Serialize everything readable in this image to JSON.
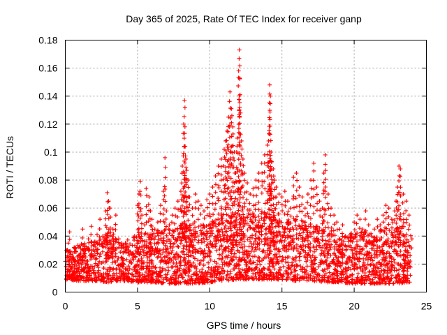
{
  "chart_data": {
    "type": "scatter",
    "title": "Day 365 of 2025, Rate Of TEC Index for receiver ganp",
    "xlabel": "GPS time / hours",
    "ylabel": "ROTI / TECUs",
    "xlim": [
      0,
      25
    ],
    "ylim": [
      0,
      0.18
    ],
    "xticks": [
      0,
      5,
      10,
      15,
      20,
      25
    ],
    "xtick_labels": [
      "0",
      "5",
      "10",
      "15",
      "20",
      "25"
    ],
    "yticks": [
      0,
      0.02,
      0.04,
      0.06,
      0.08,
      0.1,
      0.12,
      0.14,
      0.16,
      0.18
    ],
    "ytick_labels": [
      "0",
      "0.02",
      "0.04",
      "0.06",
      "0.08",
      "0.1",
      "0.12",
      "0.14",
      "0.16",
      "0.18"
    ],
    "grid": true,
    "marker": "+",
    "color": "#ff0000",
    "series": [
      {
        "name": "ROTI",
        "x": [
          0.0,
          0.1,
          0.2,
          0.3,
          0.35,
          0.5,
          0.7,
          0.9,
          1.0,
          1.2,
          1.4,
          1.6,
          1.8,
          2.0,
          2.2,
          2.4,
          2.6,
          2.8,
          2.9,
          3.0,
          3.1,
          3.3,
          3.5,
          3.7,
          3.9,
          4.0,
          4.2,
          4.4,
          4.6,
          4.8,
          5.0,
          5.1,
          5.2,
          5.3,
          5.5,
          5.6,
          5.8,
          5.9,
          6.0,
          6.2,
          6.4,
          6.6,
          6.8,
          6.9,
          7.0,
          7.2,
          7.4,
          7.6,
          7.8,
          8.0,
          8.1,
          8.2,
          8.25,
          8.3,
          8.35,
          8.4,
          8.5,
          8.6,
          8.8,
          9.0,
          9.2,
          9.4,
          9.6,
          9.8,
          10.0,
          10.2,
          10.4,
          10.6,
          10.8,
          11.0,
          11.1,
          11.2,
          11.3,
          11.4,
          11.5,
          11.6,
          11.7,
          11.8,
          11.9,
          12.0,
          12.05,
          12.1,
          12.2,
          12.3,
          12.4,
          12.6,
          12.8,
          13.0,
          13.2,
          13.4,
          13.6,
          13.8,
          14.0,
          14.1,
          14.15,
          14.2,
          14.25,
          14.3,
          14.4,
          14.5,
          14.6,
          14.8,
          15.0,
          15.2,
          15.4,
          15.6,
          15.8,
          16.0,
          16.2,
          16.4,
          16.6,
          16.8,
          17.0,
          17.2,
          17.4,
          17.6,
          17.8,
          17.9,
          18.0,
          18.2,
          18.4,
          18.6,
          18.8,
          19.0,
          19.2,
          19.4,
          19.6,
          19.8,
          20.0,
          20.2,
          20.4,
          20.6,
          20.8,
          21.0,
          21.2,
          21.4,
          21.6,
          21.8,
          22.0,
          22.2,
          22.4,
          22.6,
          22.8,
          22.9,
          23.0,
          23.1,
          23.2,
          23.4,
          23.6,
          23.8,
          24.0
        ],
        "y": [
          0.022,
          0.03,
          0.035,
          0.043,
          0.028,
          0.02,
          0.031,
          0.026,
          0.033,
          0.045,
          0.03,
          0.038,
          0.047,
          0.034,
          0.041,
          0.052,
          0.04,
          0.058,
          0.071,
          0.065,
          0.06,
          0.045,
          0.055,
          0.038,
          0.031,
          0.028,
          0.035,
          0.03,
          0.027,
          0.04,
          0.062,
          0.07,
          0.079,
          0.055,
          0.048,
          0.074,
          0.068,
          0.058,
          0.052,
          0.045,
          0.05,
          0.062,
          0.072,
          0.096,
          0.058,
          0.048,
          0.055,
          0.06,
          0.065,
          0.072,
          0.09,
          0.12,
          0.137,
          0.104,
          0.095,
          0.087,
          0.08,
          0.068,
          0.06,
          0.07,
          0.065,
          0.062,
          0.058,
          0.066,
          0.07,
          0.075,
          0.083,
          0.09,
          0.095,
          0.102,
          0.108,
          0.115,
          0.125,
          0.143,
          0.131,
          0.118,
          0.1,
          0.085,
          0.11,
          0.158,
          0.173,
          0.141,
          0.108,
          0.095,
          0.085,
          0.078,
          0.07,
          0.074,
          0.08,
          0.085,
          0.092,
          0.098,
          0.105,
          0.113,
          0.148,
          0.14,
          0.1,
          0.093,
          0.088,
          0.08,
          0.075,
          0.07,
          0.068,
          0.072,
          0.065,
          0.06,
          0.082,
          0.085,
          0.075,
          0.068,
          0.06,
          0.07,
          0.08,
          0.092,
          0.075,
          0.065,
          0.06,
          0.085,
          0.098,
          0.07,
          0.06,
          0.055,
          0.05,
          0.045,
          0.048,
          0.04,
          0.038,
          0.042,
          0.05,
          0.055,
          0.052,
          0.045,
          0.058,
          0.048,
          0.04,
          0.045,
          0.052,
          0.048,
          0.055,
          0.062,
          0.06,
          0.052,
          0.058,
          0.065,
          0.075,
          0.09,
          0.088,
          0.07,
          0.065,
          0.055,
          0.038
        ]
      }
    ],
    "band": {
      "description": "dense cloud of points between lower and upper envelope at each x",
      "x": [
        0,
        1,
        2,
        3,
        4,
        5,
        6,
        7,
        8,
        9,
        10,
        11,
        12,
        13,
        14,
        15,
        16,
        17,
        18,
        19,
        20,
        21,
        22,
        23,
        24
      ],
      "lower": [
        0.009,
        0.008,
        0.008,
        0.007,
        0.008,
        0.007,
        0.007,
        0.006,
        0.006,
        0.006,
        0.007,
        0.008,
        0.009,
        0.009,
        0.009,
        0.009,
        0.008,
        0.008,
        0.007,
        0.007,
        0.006,
        0.006,
        0.006,
        0.006,
        0.007
      ],
      "upper": [
        0.03,
        0.034,
        0.038,
        0.045,
        0.035,
        0.042,
        0.045,
        0.044,
        0.05,
        0.046,
        0.05,
        0.055,
        0.058,
        0.055,
        0.06,
        0.055,
        0.052,
        0.05,
        0.045,
        0.04,
        0.042,
        0.044,
        0.046,
        0.052,
        0.04
      ]
    }
  }
}
